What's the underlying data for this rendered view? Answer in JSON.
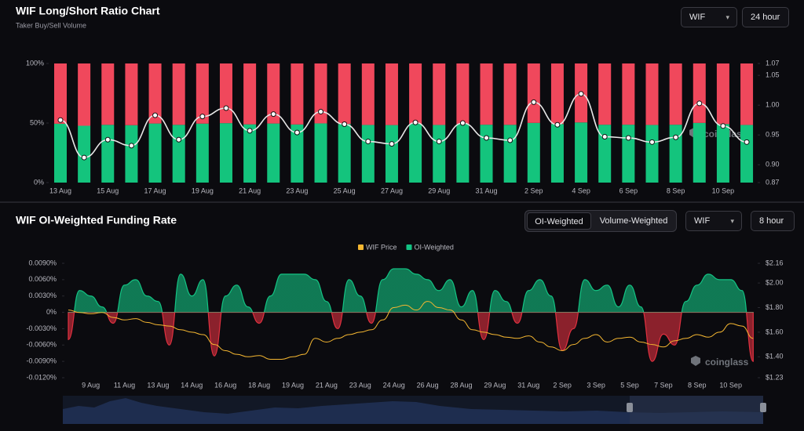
{
  "chart_data": [
    {
      "type": "bar",
      "stacked": true,
      "title": "WIF Long/Short Ratio Chart",
      "subtitle": "Taker Buy/Sell Volume",
      "controls": [
        "WIF",
        "24 hour"
      ],
      "watermark": "coinglass",
      "categories": [
        "13 Aug",
        null,
        "15 Aug",
        null,
        "17 Aug",
        null,
        "19 Aug",
        null,
        "21 Aug",
        null,
        "23 Aug",
        null,
        "25 Aug",
        null,
        "27 Aug",
        null,
        "29 Aug",
        null,
        "31 Aug",
        null,
        "2 Sep",
        null,
        "4 Sep",
        null,
        "6 Sep",
        null,
        "8 Sep",
        null,
        "10 Sep",
        null
      ],
      "series": [
        {
          "type": "bar",
          "color": "#14c47d",
          "values": [
            49.4,
            47.7,
            48.5,
            48.2,
            49.6,
            48.5,
            49.5,
            49.9,
            48.9,
            49.6,
            48.8,
            49.7,
            49.2,
            48.4,
            48.3,
            49.3,
            48.4,
            49.2,
            48.6,
            48.5,
            50.1,
            49.2,
            50.5,
            48.6,
            48.6,
            48.4,
            48.6,
            50.1,
            49.1,
            48.4
          ]
        },
        {
          "type": "bar",
          "color": "#f0485c",
          "values": [
            50.6,
            52.3,
            51.5,
            51.8,
            50.4,
            51.5,
            50.5,
            50.1,
            51.1,
            50.4,
            51.2,
            50.3,
            50.8,
            51.6,
            51.7,
            50.7,
            51.6,
            50.8,
            51.4,
            51.5,
            49.9,
            50.8,
            49.5,
            51.4,
            51.4,
            51.6,
            51.4,
            49.9,
            50.9,
            51.6
          ]
        },
        {
          "type": "line",
          "axis": "y2",
          "color": "#e8e8e8",
          "values": [
            0.975,
            0.912,
            0.942,
            0.932,
            0.983,
            0.942,
            0.981,
            0.995,
            0.957,
            0.985,
            0.954,
            0.989,
            0.968,
            0.939,
            0.935,
            0.971,
            0.939,
            0.97,
            0.945,
            0.941,
            1.005,
            0.967,
            1.019,
            0.947,
            0.945,
            0.938,
            0.946,
            1.003,
            0.965,
            0.938
          ]
        }
      ],
      "ylim": [
        0,
        100
      ],
      "yticks": [
        {
          "value": 0,
          "label": "0%"
        },
        {
          "value": 50,
          "label": "50%"
        },
        {
          "value": 100,
          "label": "100%"
        }
      ],
      "y2lim": [
        0.87,
        1.07
      ],
      "y2ticks": [
        {
          "value": 0.87,
          "label": "0.87"
        },
        {
          "value": 0.9,
          "label": "0.90"
        },
        {
          "value": 0.95,
          "label": "0.95"
        },
        {
          "value": 1,
          "label": "1.00"
        },
        {
          "value": 1.05,
          "label": "1.05"
        },
        {
          "value": 1.07,
          "label": "1.07"
        }
      ],
      "grid": false
    },
    {
      "type": "area",
      "title": "WIF OI-Weighted Funding Rate",
      "controls": [
        "OI-Weighted",
        "Volume-Weighted",
        "WIF",
        "8 hour"
      ],
      "watermark": "coinglass",
      "categories": [
        null,
        null,
        "9 Aug",
        null,
        null,
        "11 Aug",
        null,
        null,
        "13 Aug",
        null,
        null,
        "14 Aug",
        null,
        null,
        "16 Aug",
        null,
        null,
        "18 Aug",
        null,
        null,
        "19 Aug",
        null,
        null,
        "21 Aug",
        null,
        null,
        "23 Aug",
        null,
        null,
        "24 Aug",
        null,
        null,
        "26 Aug",
        null,
        null,
        "28 Aug",
        null,
        null,
        "29 Aug",
        null,
        null,
        "31 Aug",
        null,
        null,
        "2 Sep",
        null,
        null,
        "3 Sep",
        null,
        null,
        "5 Sep",
        null,
        null,
        "7 Sep",
        null,
        null,
        "8 Sep",
        null,
        null,
        "10 Sep",
        null,
        null
      ],
      "series": [
        {
          "name": "WIF Price",
          "type": "line",
          "axis": "y2",
          "color": "#f5b731",
          "values": [
            1.78,
            1.76,
            1.75,
            1.76,
            1.72,
            1.7,
            1.71,
            1.68,
            1.66,
            1.65,
            1.62,
            1.6,
            1.58,
            1.5,
            1.45,
            1.42,
            1.4,
            1.41,
            1.38,
            1.38,
            1.4,
            1.42,
            1.55,
            1.52,
            1.55,
            1.58,
            1.6,
            1.62,
            1.7,
            1.8,
            1.82,
            1.78,
            1.85,
            1.8,
            1.78,
            1.7,
            1.62,
            1.6,
            1.58,
            1.56,
            1.55,
            1.57,
            1.52,
            1.48,
            1.45,
            1.5,
            1.55,
            1.58,
            1.52,
            1.55,
            1.56,
            1.52,
            1.5,
            1.48,
            1.53,
            1.55,
            1.58,
            1.56,
            1.6,
            1.67,
            1.65,
            1.55
          ]
        },
        {
          "name": "OI-Weighted",
          "type": "area",
          "color": "#13c383",
          "negative_color": "#e0303f",
          "values": [
            -0.005,
            0.004,
            0.003,
            0.001,
            -0.002,
            0.005,
            0.006,
            0.003,
            0.002,
            -0.006,
            0.007,
            0.003,
            0.006,
            -0.008,
            0.003,
            0.005,
            0.001,
            -0.002,
            0.003,
            0.007,
            0.007,
            0.007,
            0.006,
            0.002,
            -0.003,
            0.006,
            0.003,
            -0.002,
            0.006,
            0.008,
            0.008,
            0.007,
            0.006,
            0.004,
            0.006,
            0.001,
            0.004,
            -0.005,
            0.004,
            0.002,
            -0.002,
            0.004,
            0.006,
            0.003,
            -0.007,
            -0.003,
            0.006,
            0.004,
            0.005,
            0.001,
            0.005,
            0.001,
            -0.009,
            -0.004,
            -0.006,
            0.002,
            0.005,
            0.007,
            0.006,
            0.006,
            0.004,
            -0.009
          ]
        }
      ],
      "ylim": [
        -0.012,
        0.009
      ],
      "yticks": [
        {
          "value": -0.012,
          "label": "-0.0120%"
        },
        {
          "value": -0.009,
          "label": "-0.0090%"
        },
        {
          "value": -0.006,
          "label": "-0.0060%"
        },
        {
          "value": -0.003,
          "label": "-0.0030%"
        },
        {
          "value": 0,
          "label": "0%"
        },
        {
          "value": 0.003,
          "label": "0.0030%"
        },
        {
          "value": 0.006,
          "label": "0.0060%"
        },
        {
          "value": 0.009,
          "label": "0.0090%"
        }
      ],
      "y2lim": [
        1.23,
        2.16
      ],
      "y2ticks": [
        {
          "value": 1.23,
          "label": "$1.23"
        },
        {
          "value": 1.4,
          "label": "$1.40"
        },
        {
          "value": 1.6,
          "label": "$1.60"
        },
        {
          "value": 1.8,
          "label": "$1.80"
        },
        {
          "value": 2,
          "label": "$2.00"
        },
        {
          "value": 2.16,
          "label": "$2.16"
        }
      ],
      "grid": false
    }
  ]
}
